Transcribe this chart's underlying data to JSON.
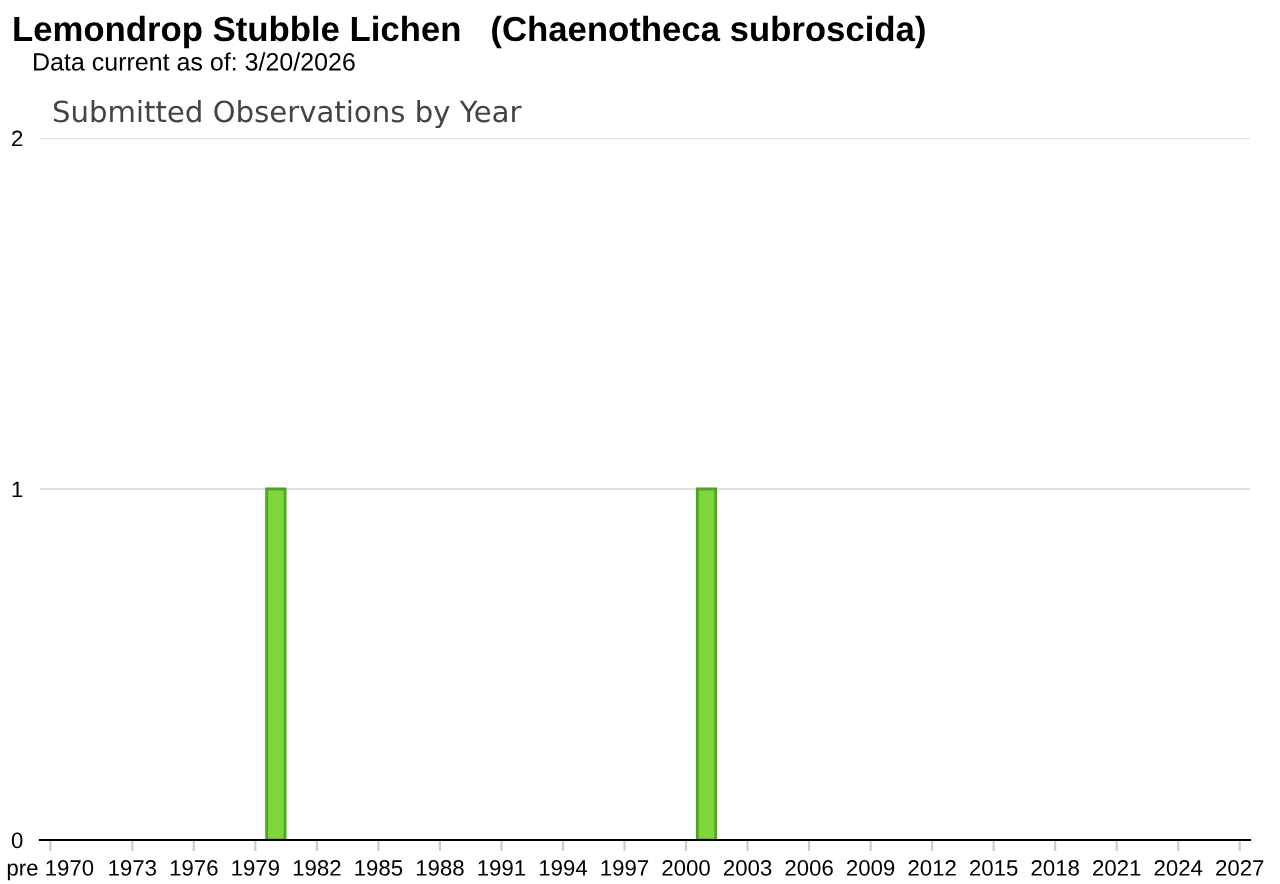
{
  "chart_data": {
    "type": "bar",
    "title": "Lemondrop Stubble Lichen   (Chaenotheca subroscida)",
    "subtitle": "Data current as of: 3/20/2026",
    "annotations": [
      "Submitted Observations by Year"
    ],
    "categories": [
      "pre 1970",
      null,
      null,
      null,
      "1973",
      null,
      null,
      "1976",
      null,
      null,
      "1979",
      null,
      null,
      "1982",
      null,
      null,
      "1985",
      null,
      null,
      "1988",
      null,
      null,
      "1991",
      null,
      null,
      "1994",
      null,
      null,
      "1997",
      null,
      null,
      "2000",
      null,
      null,
      "2003",
      null,
      null,
      "2006",
      null,
      null,
      "2009",
      null,
      null,
      "2012",
      null,
      null,
      "2015",
      null,
      null,
      "2018",
      null,
      null,
      "2021",
      null,
      null,
      "2024",
      null,
      null,
      "2027"
    ],
    "values": [
      0,
      0,
      0,
      0,
      0,
      0,
      0,
      0,
      0,
      0,
      0,
      1,
      0,
      0,
      0,
      0,
      0,
      0,
      0,
      0,
      0,
      0,
      0,
      0,
      0,
      0,
      0,
      0,
      0,
      0,
      0,
      0,
      1,
      0,
      0,
      0,
      0,
      0,
      0,
      0,
      0,
      0,
      0,
      0,
      0,
      0,
      0,
      0,
      0,
      0,
      0,
      0,
      0,
      0,
      0,
      0,
      0,
      0,
      0
    ],
    "color": "#7ed63a",
    "ylim": [
      0,
      2
    ],
    "yticks": [
      0,
      1,
      2
    ],
    "grid": "y"
  }
}
